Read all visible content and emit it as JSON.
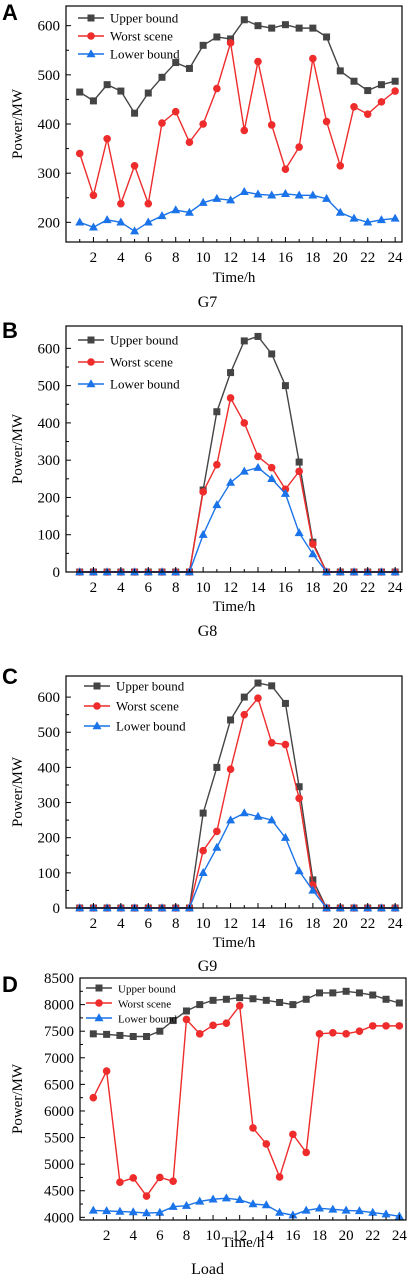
{
  "colors": {
    "upper": "#444444",
    "worst": "#ee2c2c",
    "lower": "#1a73e8",
    "axis": "#000000"
  },
  "chart_data": [
    {
      "type": "line",
      "panel": "A",
      "subtitle": "G7",
      "xlabel": "Time/h",
      "ylabel": "Power/MW",
      "x": [
        1,
        2,
        3,
        4,
        5,
        6,
        7,
        8,
        9,
        10,
        11,
        12,
        13,
        14,
        15,
        16,
        17,
        18,
        19,
        20,
        21,
        22,
        23,
        24
      ],
      "xlim": [
        0,
        24.5
      ],
      "ylim": [
        160,
        640
      ],
      "xticks": [
        2,
        4,
        6,
        8,
        10,
        12,
        14,
        16,
        18,
        20,
        22,
        24
      ],
      "yticks": [
        200,
        300,
        400,
        500,
        600
      ],
      "legend": "top-left",
      "series": [
        {
          "name": "Upper bound",
          "marker": "square",
          "color": "#444444",
          "values": [
            465,
            447,
            480,
            467,
            422,
            463,
            495,
            525,
            513,
            560,
            577,
            573,
            612,
            600,
            595,
            602,
            595,
            595,
            577,
            508,
            487,
            468,
            480,
            487
          ]
        },
        {
          "name": "Worst scene",
          "marker": "circle",
          "color": "#ee2c2c",
          "values": [
            340,
            255,
            370,
            238,
            315,
            238,
            402,
            425,
            363,
            400,
            472,
            565,
            387,
            527,
            398,
            308,
            353,
            533,
            405,
            315,
            435,
            420,
            445,
            467
          ]
        },
        {
          "name": "Lower bound",
          "marker": "triangle",
          "color": "#1a73e8",
          "values": [
            200,
            190,
            205,
            200,
            182,
            200,
            213,
            225,
            220,
            240,
            248,
            245,
            262,
            257,
            255,
            258,
            255,
            255,
            248,
            220,
            208,
            200,
            205,
            208
          ]
        }
      ]
    },
    {
      "type": "line",
      "panel": "B",
      "subtitle": "G8",
      "xlabel": "Time/h",
      "ylabel": "Power/MW",
      "x": [
        1,
        2,
        3,
        4,
        5,
        6,
        7,
        8,
        9,
        10,
        11,
        12,
        13,
        14,
        15,
        16,
        17,
        18,
        19,
        20,
        21,
        22,
        23,
        24
      ],
      "xlim": [
        0,
        24.5
      ],
      "ylim": [
        0,
        660
      ],
      "xticks": [
        2,
        4,
        6,
        8,
        10,
        12,
        14,
        16,
        18,
        20,
        22,
        24
      ],
      "yticks": [
        0,
        100,
        200,
        300,
        400,
        500,
        600
      ],
      "legend": "top-left",
      "series": [
        {
          "name": "Upper bound",
          "marker": "square",
          "color": "#444444",
          "values": [
            0,
            0,
            0,
            0,
            0,
            0,
            0,
            0,
            0,
            220,
            430,
            535,
            620,
            632,
            585,
            500,
            295,
            80,
            0,
            0,
            0,
            0,
            0,
            0
          ]
        },
        {
          "name": "Worst scene",
          "marker": "circle",
          "color": "#ee2c2c",
          "values": [
            0,
            0,
            0,
            0,
            0,
            0,
            0,
            0,
            0,
            215,
            288,
            467,
            400,
            310,
            280,
            222,
            270,
            75,
            0,
            0,
            0,
            0,
            0,
            0
          ]
        },
        {
          "name": "Lower bound",
          "marker": "triangle",
          "color": "#1a73e8",
          "values": [
            0,
            0,
            0,
            0,
            0,
            0,
            0,
            0,
            0,
            100,
            180,
            240,
            270,
            280,
            250,
            210,
            105,
            48,
            0,
            0,
            0,
            0,
            0,
            0
          ]
        }
      ]
    },
    {
      "type": "line",
      "panel": "C",
      "subtitle": "G9",
      "xlabel": "Time/h",
      "ylabel": "Power/MW",
      "x": [
        1,
        2,
        3,
        4,
        5,
        6,
        7,
        8,
        9,
        10,
        11,
        12,
        13,
        14,
        15,
        16,
        17,
        18,
        19,
        20,
        21,
        22,
        23,
        24
      ],
      "xlim": [
        0,
        24.5
      ],
      "ylim": [
        0,
        660
      ],
      "xticks": [
        2,
        4,
        6,
        8,
        10,
        12,
        14,
        16,
        18,
        20,
        22,
        24
      ],
      "yticks": [
        0,
        100,
        200,
        300,
        400,
        500,
        600
      ],
      "legend": "top-left",
      "series": [
        {
          "name": "Upper bound",
          "marker": "square",
          "color": "#444444",
          "values": [
            0,
            0,
            0,
            0,
            0,
            0,
            0,
            0,
            0,
            270,
            400,
            535,
            600,
            640,
            632,
            582,
            345,
            80,
            0,
            0,
            0,
            0,
            0,
            0
          ]
        },
        {
          "name": "Worst scene",
          "marker": "circle",
          "color": "#ee2c2c",
          "values": [
            0,
            0,
            0,
            0,
            0,
            0,
            0,
            0,
            0,
            163,
            218,
            395,
            550,
            597,
            470,
            465,
            312,
            65,
            0,
            0,
            0,
            0,
            0,
            0
          ]
        },
        {
          "name": "Lower bound",
          "marker": "triangle",
          "color": "#1a73e8",
          "values": [
            0,
            0,
            0,
            0,
            0,
            0,
            0,
            0,
            0,
            100,
            172,
            250,
            270,
            260,
            250,
            200,
            105,
            50,
            0,
            0,
            0,
            0,
            0,
            0
          ]
        }
      ]
    },
    {
      "type": "line",
      "panel": "D",
      "subtitle": "Load",
      "xlabel": "Time/h",
      "ylabel": "Power/MW",
      "x": [
        1,
        2,
        3,
        4,
        5,
        6,
        7,
        8,
        9,
        10,
        11,
        12,
        13,
        14,
        15,
        16,
        17,
        18,
        19,
        20,
        21,
        22,
        23,
        24
      ],
      "xlim": [
        0,
        24.5
      ],
      "ylim": [
        3950,
        8500
      ],
      "xticks": [
        2,
        4,
        6,
        8,
        10,
        12,
        14,
        16,
        18,
        20,
        22,
        24
      ],
      "yticks": [
        4000,
        4500,
        5000,
        5500,
        6000,
        6500,
        7000,
        7500,
        8000,
        8500
      ],
      "legend": "top-left",
      "series": [
        {
          "name": "Upper bound",
          "marker": "square",
          "color": "#444444",
          "values": [
            7450,
            7440,
            7420,
            7400,
            7400,
            7500,
            7700,
            7880,
            8000,
            8080,
            8100,
            8130,
            8110,
            8080,
            8040,
            8000,
            8100,
            8220,
            8220,
            8250,
            8220,
            8180,
            8100,
            8030
          ]
        },
        {
          "name": "Worst scene",
          "marker": "circle",
          "color": "#ee2c2c",
          "values": [
            6250,
            6750,
            4660,
            4740,
            4400,
            4750,
            4680,
            7720,
            7450,
            7610,
            7650,
            7980,
            5680,
            5380,
            4760,
            5560,
            5220,
            7450,
            7470,
            7450,
            7500,
            7600,
            7600,
            7600
          ]
        },
        {
          "name": "Lower bound",
          "marker": "triangle",
          "color": "#1a73e8",
          "values": [
            4130,
            4120,
            4110,
            4100,
            4080,
            4090,
            4200,
            4220,
            4300,
            4340,
            4360,
            4330,
            4250,
            4230,
            4090,
            4040,
            4130,
            4170,
            4150,
            4130,
            4120,
            4090,
            4060,
            4020
          ]
        }
      ]
    }
  ]
}
